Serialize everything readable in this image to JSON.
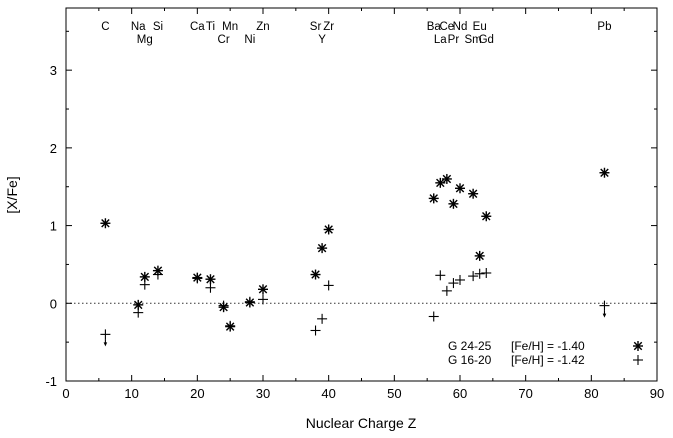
{
  "chart_data": {
    "type": "scatter",
    "xlabel": "Nuclear Charge Z",
    "ylabel": "[X/Fe]",
    "xlim": [
      0,
      90
    ],
    "ylim": [
      -1,
      3.8
    ],
    "xticks": [
      0,
      10,
      20,
      30,
      40,
      50,
      60,
      70,
      80,
      90
    ],
    "yticks": [
      -1,
      0,
      1,
      2,
      3
    ],
    "reference_line": {
      "y": 0,
      "style": "dotted"
    },
    "element_labels": [
      {
        "text": "C",
        "z": 6,
        "row": 1
      },
      {
        "text": "Na",
        "z": 11,
        "row": 1
      },
      {
        "text": "Mg",
        "z": 12,
        "row": 2
      },
      {
        "text": "Si",
        "z": 14,
        "row": 1
      },
      {
        "text": "Ca",
        "z": 20,
        "row": 1
      },
      {
        "text": "Ti",
        "z": 22,
        "row": 1
      },
      {
        "text": "Cr",
        "z": 24,
        "row": 2
      },
      {
        "text": "Mn",
        "z": 25,
        "row": 1
      },
      {
        "text": "Ni",
        "z": 28,
        "row": 2
      },
      {
        "text": "Zn",
        "z": 30,
        "row": 1
      },
      {
        "text": "Sr",
        "z": 38,
        "row": 1
      },
      {
        "text": "Y",
        "z": 39,
        "row": 2
      },
      {
        "text": "Zr",
        "z": 40,
        "row": 1
      },
      {
        "text": "Ba",
        "z": 56,
        "row": 1
      },
      {
        "text": "La",
        "z": 57,
        "row": 2
      },
      {
        "text": "Ce",
        "z": 58,
        "row": 1
      },
      {
        "text": "Pr",
        "z": 59,
        "row": 2
      },
      {
        "text": "Nd",
        "z": 60,
        "row": 1
      },
      {
        "text": "Sm",
        "z": 62,
        "row": 2
      },
      {
        "text": "Eu",
        "z": 63,
        "row": 1
      },
      {
        "text": "Gd",
        "z": 64,
        "row": 2
      },
      {
        "text": "Pb",
        "z": 82,
        "row": 1
      }
    ],
    "series": [
      {
        "name": "G 24-25",
        "label": "[Fe/H] = -1.40",
        "marker": "asterisk",
        "points": [
          {
            "x": 6,
            "y": 1.03
          },
          {
            "x": 11,
            "y": -0.02
          },
          {
            "x": 12,
            "y": 0.34
          },
          {
            "x": 14,
            "y": 0.42
          },
          {
            "x": 20,
            "y": 0.33
          },
          {
            "x": 22,
            "y": 0.31
          },
          {
            "x": 24,
            "y": -0.05
          },
          {
            "x": 25,
            "y": -0.3
          },
          {
            "x": 28,
            "y": 0.01
          },
          {
            "x": 30,
            "y": 0.18
          },
          {
            "x": 38,
            "y": 0.37
          },
          {
            "x": 39,
            "y": 0.71
          },
          {
            "x": 40,
            "y": 0.95
          },
          {
            "x": 56,
            "y": 1.35
          },
          {
            "x": 57,
            "y": 1.55
          },
          {
            "x": 58,
            "y": 1.6
          },
          {
            "x": 59,
            "y": 1.28
          },
          {
            "x": 60,
            "y": 1.48
          },
          {
            "x": 62,
            "y": 1.41
          },
          {
            "x": 63,
            "y": 0.61
          },
          {
            "x": 64,
            "y": 1.12
          },
          {
            "x": 82,
            "y": 1.68
          }
        ]
      },
      {
        "name": "G 16-20",
        "label": "[Fe/H] = -1.42",
        "marker": "plus",
        "points": [
          {
            "x": 6,
            "y": -0.4,
            "upper_limit": true
          },
          {
            "x": 11,
            "y": -0.12
          },
          {
            "x": 12,
            "y": 0.24
          },
          {
            "x": 14,
            "y": 0.37
          },
          {
            "x": 20,
            "y": 0.32
          },
          {
            "x": 22,
            "y": 0.2
          },
          {
            "x": 24,
            "y": -0.03
          },
          {
            "x": 25,
            "y": -0.29
          },
          {
            "x": 28,
            "y": 0.02
          },
          {
            "x": 30,
            "y": 0.05
          },
          {
            "x": 38,
            "y": -0.35
          },
          {
            "x": 39,
            "y": -0.2
          },
          {
            "x": 40,
            "y": 0.23
          },
          {
            "x": 56,
            "y": -0.17
          },
          {
            "x": 57,
            "y": 0.36
          },
          {
            "x": 58,
            "y": 0.16
          },
          {
            "x": 59,
            "y": 0.26
          },
          {
            "x": 60,
            "y": 0.3
          },
          {
            "x": 62,
            "y": 0.35
          },
          {
            "x": 63,
            "y": 0.38
          },
          {
            "x": 64,
            "y": 0.39
          },
          {
            "x": 82,
            "y": -0.03,
            "upper_limit": true
          }
        ]
      }
    ],
    "legend_position": "bottom-right"
  }
}
